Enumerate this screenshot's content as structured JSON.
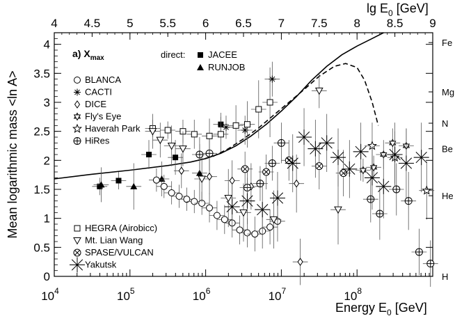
{
  "chart_data": {
    "type": "scatter",
    "title": "a) X",
    "title_subscript": "max",
    "xlabel": "Energy E",
    "xlabel_subscript": "0",
    "xlabel_unit": " [GeV]",
    "ylabel": "Mean logarithmic mass <ln A>",
    "top_axis_label": "lg E",
    "top_axis_subscript": "0",
    "top_axis_unit": " [GeV]",
    "x_scale": "log10",
    "xlim_log10": [
      4,
      9
    ],
    "ylim": [
      0,
      4.2
    ],
    "x_ticks_log10": [
      4,
      5,
      6,
      7,
      8
    ],
    "x_tick_base": "10",
    "y_ticks": [
      0,
      0.5,
      1,
      1.5,
      2,
      2.5,
      3,
      3.5,
      4
    ],
    "y_tick_labels": [
      "0",
      "0.5",
      "1",
      "1.5",
      "2",
      "2.5",
      "3",
      "3.5",
      "4"
    ],
    "top_ticks": [
      4,
      4.5,
      5,
      5.5,
      6,
      6.5,
      7,
      7.5,
      8,
      8.5,
      9
    ],
    "top_tick_labels": [
      "4",
      "4.5",
      "5",
      "5.5",
      "6",
      "6.5",
      "7",
      "7.5",
      "8",
      "8.5",
      "9"
    ],
    "element_labels": [
      {
        "name": "Fe",
        "lnA": 4.03
      },
      {
        "name": "Mg",
        "lnA": 3.18
      },
      {
        "name": "N",
        "lnA": 2.64
      },
      {
        "name": "Be",
        "lnA": 2.2
      },
      {
        "name": "He",
        "lnA": 1.39
      },
      {
        "name": "H",
        "lnA": 0.0
      }
    ],
    "direct_legend_title": "direct:",
    "legend": [
      {
        "name": "JACEE",
        "marker": "filled-square",
        "group": "direct"
      },
      {
        "name": "RUNJOB",
        "marker": "filled-triangle",
        "group": "direct"
      },
      {
        "name": "BLANCA",
        "marker": "open-circle",
        "group": "left"
      },
      {
        "name": "CACTI",
        "marker": "asterisk-small",
        "group": "left"
      },
      {
        "name": "DICE",
        "marker": "open-diamond",
        "group": "left"
      },
      {
        "name": "Fly's Eye",
        "marker": "open-star-of-david",
        "group": "left"
      },
      {
        "name": "Haverah Park",
        "marker": "open-star",
        "group": "left"
      },
      {
        "name": "HiRes",
        "marker": "circle-plus",
        "group": "left"
      },
      {
        "name": "HEGRA (Airobicc)",
        "marker": "open-square",
        "group": "bottom"
      },
      {
        "name": "Mt. Lian Wang",
        "marker": "open-triangle-down",
        "group": "bottom"
      },
      {
        "name": "SPASE/VULCAN",
        "marker": "circle-x",
        "group": "bottom"
      },
      {
        "name": "Yakutsk",
        "marker": "asterisk-large",
        "group": "bottom"
      }
    ],
    "curves": [
      {
        "name": "model-solid",
        "style": "solid",
        "x_log10": [
          4,
          4.5,
          5,
          5.5,
          5.8,
          6,
          6.2,
          6.4,
          6.6,
          6.8,
          7,
          7.2,
          7.4,
          7.6,
          7.8,
          8,
          8.2,
          8.35
        ],
        "y": [
          1.68,
          1.76,
          1.83,
          1.91,
          1.97,
          2.03,
          2.12,
          2.25,
          2.42,
          2.62,
          2.85,
          3.1,
          3.38,
          3.62,
          3.82,
          3.97,
          4.1,
          4.2
        ]
      },
      {
        "name": "model-dashed",
        "style": "dashed",
        "x_log10": [
          5.9,
          6.1,
          6.3,
          6.5,
          6.7,
          6.9,
          7.1,
          7.3,
          7.5,
          7.7,
          7.85,
          8.0,
          8.1,
          8.2,
          8.28
        ],
        "y": [
          2.0,
          2.07,
          2.2,
          2.37,
          2.56,
          2.78,
          3.0,
          3.22,
          3.45,
          3.62,
          3.67,
          3.6,
          3.38,
          3.0,
          2.6
        ]
      }
    ],
    "series": [
      {
        "name": "JACEE",
        "marker": "filled-square",
        "points": [
          [
            4.6,
            1.55,
            0.15
          ],
          [
            4.85,
            1.65,
            0.15
          ],
          [
            5.25,
            2.1,
            0.25
          ],
          [
            5.6,
            2.05,
            0.3
          ],
          [
            6.2,
            2.62,
            0.2
          ]
        ]
      },
      {
        "name": "RUNJOB",
        "marker": "filled-triangle",
        "points": [
          [
            4.62,
            1.58,
            0.3
          ],
          [
            5.05,
            1.55,
            0.4
          ],
          [
            5.42,
            1.68,
            0.3
          ],
          [
            5.92,
            1.78,
            0.5
          ]
        ]
      },
      {
        "name": "BLANCA",
        "marker": "open-circle",
        "points": [
          [
            5.35,
            1.66,
            0.2
          ],
          [
            5.45,
            1.55,
            0.2
          ],
          [
            5.55,
            1.44,
            0.2
          ],
          [
            5.65,
            1.38,
            0.2
          ],
          [
            5.75,
            1.33,
            0.2
          ],
          [
            5.85,
            1.29,
            0.2
          ],
          [
            5.95,
            1.26,
            0.2
          ],
          [
            6.05,
            1.18,
            0.25
          ],
          [
            6.15,
            1.05,
            0.25
          ],
          [
            6.25,
            0.98,
            0.25
          ],
          [
            6.35,
            0.92,
            0.25
          ],
          [
            6.45,
            0.8,
            0.25
          ],
          [
            6.55,
            0.75,
            0.25
          ],
          [
            6.65,
            0.73,
            0.3
          ],
          [
            6.75,
            0.78,
            0.3
          ],
          [
            6.85,
            0.85,
            0.3
          ],
          [
            6.95,
            0.95,
            0.35
          ]
        ]
      },
      {
        "name": "CACTI",
        "marker": "asterisk-small",
        "points": [
          [
            6.27,
            2.57,
            0.2
          ],
          [
            6.52,
            2.52,
            0.25
          ],
          [
            6.88,
            3.4,
            0.3
          ]
        ]
      },
      {
        "name": "DICE",
        "marker": "open-diamond",
        "points": [
          [
            5.68,
            1.82,
            0.3
          ],
          [
            6.05,
            1.72,
            0.3
          ],
          [
            6.35,
            1.65,
            0.35
          ],
          [
            6.6,
            1.55,
            0.4
          ],
          [
            7.2,
            1.6,
            0.5
          ],
          [
            7.25,
            0.25,
            0.4
          ]
        ]
      },
      {
        "name": "Fly's Eye",
        "marker": "open-star-of-david",
        "points": [
          [
            8.08,
            1.83,
            0.2
          ],
          [
            8.22,
            1.88,
            0.2
          ],
          [
            8.35,
            2.1,
            0.25
          ],
          [
            8.47,
            2.3,
            0.25
          ],
          [
            8.65,
            2.25,
            0.3
          ]
        ]
      },
      {
        "name": "Haverah Park",
        "marker": "open-star",
        "points": [
          [
            8.2,
            2.25,
            0.4
          ],
          [
            8.5,
            2.05,
            0.45
          ],
          [
            8.92,
            1.48,
            0.5
          ]
        ]
      },
      {
        "name": "HiRes",
        "marker": "circle-plus",
        "points": [
          [
            5.92,
            2.1,
            0.3
          ],
          [
            6.05,
            2.12,
            0.3
          ],
          [
            6.55,
            1.53,
            0.3
          ],
          [
            6.72,
            1.6,
            0.3
          ],
          [
            6.88,
            1.95,
            0.3
          ],
          [
            7.0,
            2.3,
            0.35
          ],
          [
            8.18,
            1.33,
            0.4
          ],
          [
            8.3,
            1.08,
            0.45
          ],
          [
            8.52,
            1.5,
            0.45
          ],
          [
            8.68,
            1.3,
            0.5
          ],
          [
            8.82,
            0.42,
            0.4
          ],
          [
            8.97,
            0.22,
            0.4
          ]
        ]
      },
      {
        "name": "HEGRA (Airobicc)",
        "marker": "open-square",
        "points": [
          [
            5.3,
            2.55,
            0.15
          ],
          [
            5.5,
            2.52,
            0.15
          ],
          [
            5.7,
            2.5,
            0.2
          ],
          [
            5.85,
            2.45,
            0.25
          ],
          [
            6.05,
            2.42,
            0.3
          ],
          [
            6.2,
            2.45,
            0.3
          ],
          [
            6.4,
            2.6,
            0.35
          ],
          [
            6.55,
            2.62,
            0.4
          ],
          [
            6.7,
            2.88,
            0.5
          ],
          [
            6.85,
            3.0,
            0.6
          ]
        ]
      },
      {
        "name": "Mt. Lian Wang",
        "marker": "open-triangle-down",
        "points": [
          [
            5.3,
            2.5,
            0.3
          ],
          [
            5.4,
            2.35,
            0.3
          ],
          [
            5.55,
            2.25,
            0.35
          ],
          [
            5.7,
            2.2,
            0.3
          ],
          [
            5.95,
            1.68,
            0.4
          ],
          [
            6.3,
            1.35,
            0.5
          ],
          [
            6.5,
            1.1,
            0.5
          ],
          [
            6.9,
            0.98,
            0.5
          ],
          [
            7.5,
            3.2,
            0.3
          ],
          [
            7.75,
            1.15,
            0.6
          ]
        ]
      },
      {
        "name": "SPASE/VULCAN",
        "marker": "circle-x",
        "points": [
          [
            6.52,
            1.85,
            0.3
          ],
          [
            6.8,
            1.8,
            0.3
          ],
          [
            7.1,
            2.0,
            0.35
          ],
          [
            7.5,
            1.9,
            0.4
          ],
          [
            7.82,
            1.78,
            0.4
          ]
        ]
      },
      {
        "name": "Yakutsk",
        "marker": "asterisk-large",
        "points": [
          [
            6.35,
            1.2,
            0.4
          ],
          [
            6.55,
            1.3,
            0.4
          ],
          [
            6.75,
            1.15,
            0.45
          ],
          [
            6.95,
            1.35,
            0.45
          ],
          [
            7.15,
            1.95,
            0.5
          ],
          [
            7.3,
            2.4,
            0.5
          ],
          [
            7.45,
            2.2,
            0.5
          ],
          [
            7.6,
            2.3,
            0.5
          ],
          [
            7.75,
            2.05,
            0.5
          ],
          [
            7.9,
            1.85,
            0.5
          ],
          [
            8.05,
            2.15,
            0.5
          ],
          [
            8.2,
            1.7,
            0.55
          ],
          [
            8.35,
            1.55,
            0.55
          ],
          [
            8.5,
            2.1,
            0.55
          ],
          [
            8.65,
            1.95,
            0.6
          ],
          [
            8.85,
            2.05,
            0.6
          ]
        ]
      }
    ]
  }
}
